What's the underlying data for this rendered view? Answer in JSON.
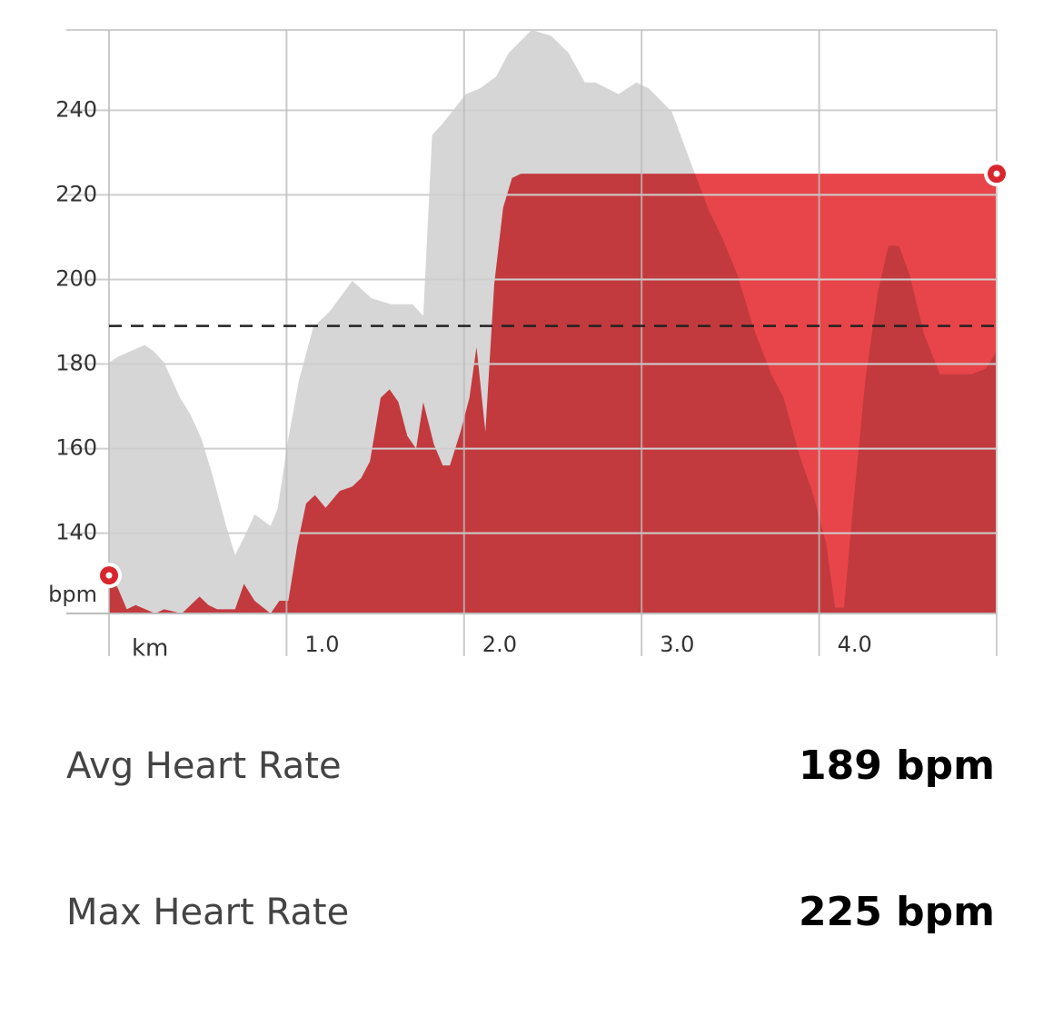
{
  "chart_data": {
    "type": "area",
    "y_unit": "bpm",
    "xlim": [
      0,
      5
    ],
    "xticks": [
      {
        "value": 0,
        "label": "km"
      },
      {
        "value": 1,
        "label": "1.0"
      },
      {
        "value": 2,
        "label": "2.0"
      },
      {
        "value": 3,
        "label": "3.0"
      },
      {
        "value": 4,
        "label": "4.0"
      }
    ],
    "ylim": [
      121,
      259
    ],
    "yticks": [
      140,
      160,
      180,
      200,
      220,
      240
    ],
    "y2lim": [
      0,
      100
    ],
    "grid": true,
    "series": [
      {
        "color": "#e8454a",
        "x": [
          0,
          0.05,
          0.1,
          0.15,
          0.26,
          0.31,
          0.41,
          0.51,
          0.56,
          0.61,
          0.71,
          0.76,
          0.82,
          0.91,
          0.96,
          1.01,
          1.06,
          1.11,
          1.16,
          1.22,
          1.3,
          1.37,
          1.42,
          1.47,
          1.53,
          1.58,
          1.63,
          1.68,
          1.73,
          1.77,
          1.83,
          1.88,
          1.92,
          1.98,
          2.03,
          2.07,
          2.12,
          2.17,
          2.22,
          2.27,
          2.32,
          5.0
        ],
        "values": [
          130,
          127,
          122,
          123,
          121,
          122,
          121,
          125,
          123,
          122,
          122,
          128,
          124,
          121,
          124,
          124,
          137,
          147,
          149,
          146,
          150,
          151,
          153,
          157,
          172,
          174,
          171,
          163,
          160,
          171,
          161,
          156,
          156,
          164,
          172,
          184,
          164,
          199,
          217,
          224,
          225,
          225
        ]
      },
      {
        "color": "#d6d6d6",
        "axis": "y2",
        "x": [
          0,
          0.05,
          0.2,
          0.25,
          0.31,
          0.4,
          0.46,
          0.52,
          0.58,
          0.66,
          0.71,
          0.76,
          0.82,
          0.91,
          0.95,
          1.01,
          1.07,
          1.15,
          1.25,
          1.37,
          1.48,
          1.59,
          1.71,
          1.77,
          1.82,
          1.88,
          2.01,
          2.09,
          2.18,
          2.25,
          2.38,
          2.49,
          2.59,
          2.68,
          2.74,
          2.87,
          2.97,
          3.04,
          3.17,
          3.28,
          3.38,
          3.46,
          3.54,
          3.63,
          3.73,
          3.8,
          3.89,
          3.96,
          4.04,
          4.09,
          4.14,
          4.19,
          4.26,
          4.33,
          4.39,
          4.45,
          4.51,
          4.59,
          4.68,
          4.76,
          4.86,
          4.94,
          5.0
        ],
        "values": [
          43,
          44,
          46,
          45,
          43,
          37,
          34,
          30,
          24,
          15,
          10,
          13,
          17,
          15,
          18,
          30,
          40,
          49,
          52,
          57,
          54,
          53,
          53,
          51,
          82,
          84,
          89,
          90,
          92,
          96,
          100,
          99,
          96,
          91,
          91,
          89,
          91,
          90,
          86,
          77,
          69,
          64,
          58,
          49,
          41,
          37,
          27,
          21,
          12,
          1,
          1,
          18,
          40,
          55,
          63,
          63,
          58,
          48,
          41,
          41,
          41,
          42,
          45
        ]
      }
    ]
  },
  "stats": [
    {
      "label": "Avg Heart Rate",
      "value": 189,
      "value_label": "189 bpm"
    },
    {
      "label": "Max Heart Rate",
      "value": 225,
      "value_label": "225 bpm"
    }
  ]
}
